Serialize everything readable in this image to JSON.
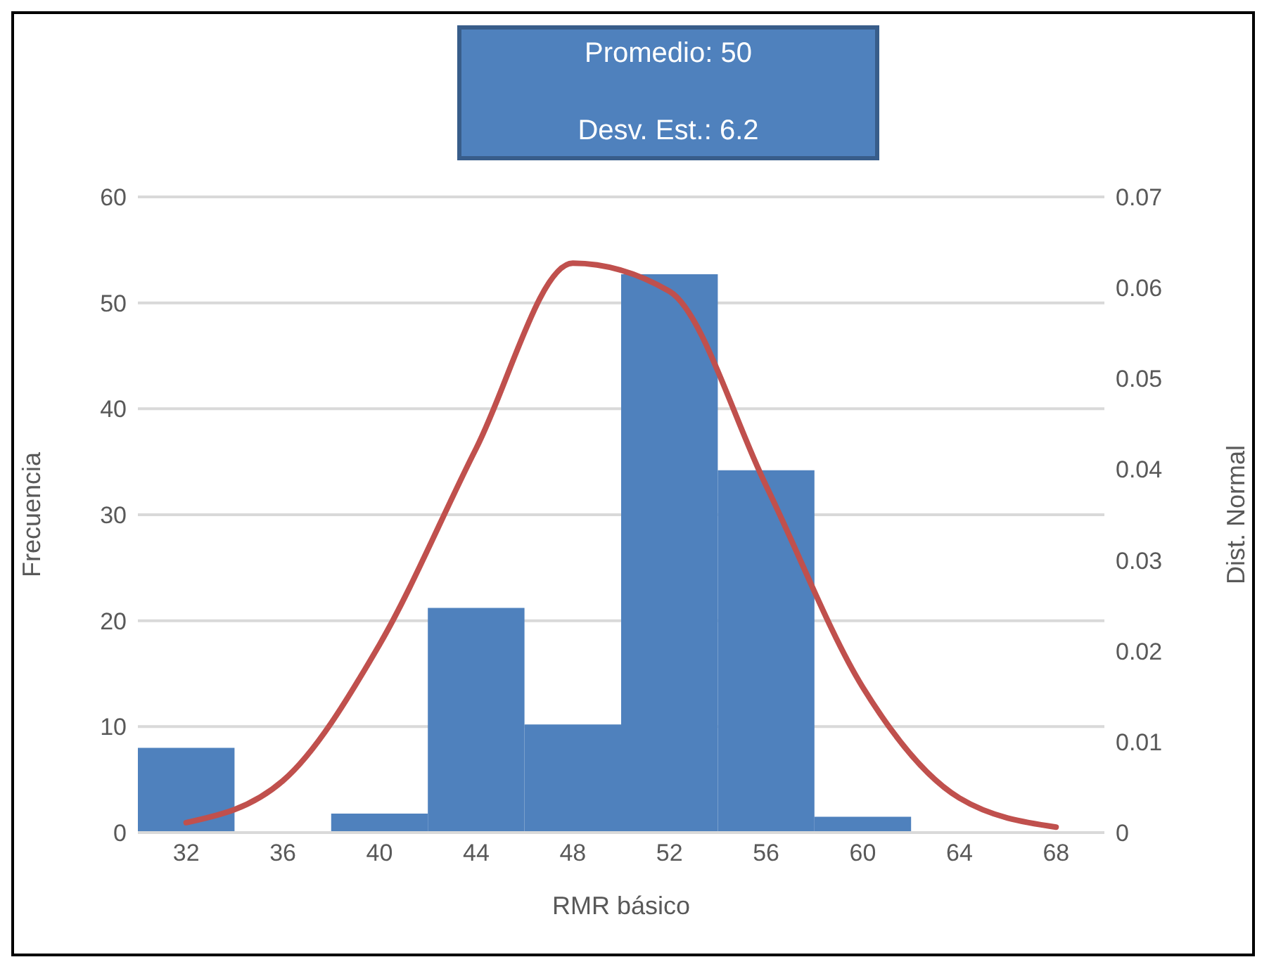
{
  "chart_data": {
    "type": "histogram",
    "xlabel": "RMR básico",
    "ylabel": "Frecuencia",
    "y2label": "Dist. Normal",
    "annotations": [
      "Promedio: 50",
      "Desv. Est.: 6.2"
    ],
    "bins": [
      30,
      34,
      38,
      42,
      46,
      50,
      54,
      58,
      62,
      66,
      70
    ],
    "series": [
      {
        "color": "#4f81bd",
        "values": [
          8,
          0,
          1.8,
          21.2,
          10.2,
          52.7,
          34.2,
          1.5,
          0,
          0
        ]
      },
      {
        "type": "line",
        "axis": "y2",
        "color": "#c0504d",
        "x": [
          32,
          36,
          40,
          44,
          48,
          52,
          56,
          60,
          64,
          68
        ],
        "values": [
          0.0011,
          0.0057,
          0.0207,
          0.0423,
          0.0627,
          0.0596,
          0.0382,
          0.016,
          0.0038,
          0.0006
        ]
      }
    ],
    "xlim": [
      30,
      70
    ],
    "xticks": [
      32,
      36,
      40,
      44,
      48,
      52,
      56,
      60,
      64,
      68
    ],
    "ylim": [
      0,
      60
    ],
    "yticks": [
      0,
      10,
      20,
      30,
      40,
      50,
      60
    ],
    "y2lim": [
      0,
      0.07
    ],
    "y2ticks": [
      0,
      0.01,
      0.02,
      0.03,
      0.04,
      0.05,
      0.06,
      0.07
    ],
    "grid": "y"
  }
}
